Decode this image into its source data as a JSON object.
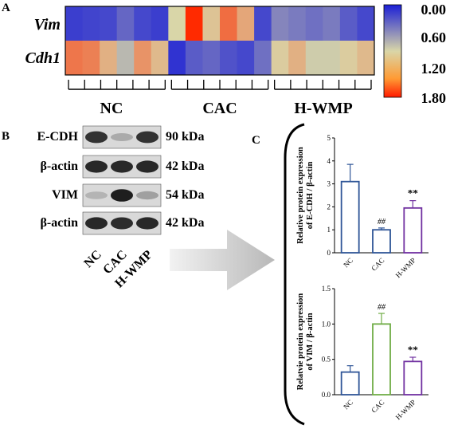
{
  "panels": {
    "a_letter": "A",
    "b_letter": "B",
    "c_letter": "C"
  },
  "heatmap": {
    "row_labels": [
      "Vim",
      "Cdh1"
    ],
    "group_labels": [
      "NC",
      "CAC",
      "H-WMP"
    ],
    "colorbar_ticks": [
      "0.00",
      "0.60",
      "1.20",
      "1.80"
    ],
    "colorbar_range": [
      0,
      1.8
    ],
    "colorbar_colors": [
      "#1b1fd6",
      "#d9d6a8",
      "#ff2a00"
    ],
    "values": [
      [
        0.15,
        0.18,
        0.2,
        0.35,
        0.2,
        0.15,
        0.9,
        1.8,
        1.0,
        1.45,
        1.15,
        0.2,
        0.5,
        0.45,
        0.4,
        0.45,
        0.3,
        0.2
      ],
      [
        1.4,
        1.35,
        1.1,
        0.75,
        1.25,
        1.05,
        0.1,
        0.3,
        0.35,
        0.25,
        0.2,
        0.4,
        0.95,
        1.1,
        0.85,
        0.85,
        0.95,
        1.05
      ]
    ]
  },
  "western_blot": {
    "rows": [
      {
        "label": "E-CDH",
        "kda": "90 kDa",
        "intensity": [
          0.85,
          0.25,
          0.85
        ]
      },
      {
        "label": "β-actin",
        "kda": "42 kDa",
        "intensity": [
          0.9,
          0.9,
          0.9
        ]
      },
      {
        "label": "VIM",
        "kda": "54 kDa",
        "intensity": [
          0.2,
          0.95,
          0.3
        ]
      },
      {
        "label": "β-actin",
        "kda": "42 kDa",
        "intensity": [
          0.9,
          0.88,
          0.9
        ]
      }
    ],
    "lanes": [
      "NC",
      "CAC",
      "H-WMP"
    ]
  },
  "chart_data": [
    {
      "type": "bar",
      "categories": [
        "NC",
        "CAC",
        "H-WMP"
      ],
      "values": [
        3.1,
        1.0,
        1.95
      ],
      "errors": [
        0.75,
        0.08,
        0.32
      ],
      "annotations": [
        "",
        "##",
        "**"
      ],
      "ylabel_line1": "Relative protein expression",
      "ylabel_line2": "of E-CDH / β-actin",
      "ylim": [
        0,
        5
      ],
      "yticks": [
        "0",
        "1",
        "2",
        "3",
        "4",
        "5"
      ],
      "colors": [
        "#2f5597",
        "#2f5597",
        "#7030a0"
      ]
    },
    {
      "type": "bar",
      "categories": [
        "NC",
        "CAC",
        "H-WMP"
      ],
      "values": [
        0.32,
        1.0,
        0.47
      ],
      "errors": [
        0.09,
        0.15,
        0.06
      ],
      "annotations": [
        "",
        "##",
        "**"
      ],
      "ylabel_line1": "Relatvie protein expression",
      "ylabel_line2": "of VIM / β-actin",
      "ylim": [
        0,
        1.5
      ],
      "yticks": [
        "0.0",
        "0.5",
        "1.0",
        "1.5"
      ],
      "colors": [
        "#2f5597",
        "#70ad47",
        "#7030a0"
      ]
    }
  ]
}
